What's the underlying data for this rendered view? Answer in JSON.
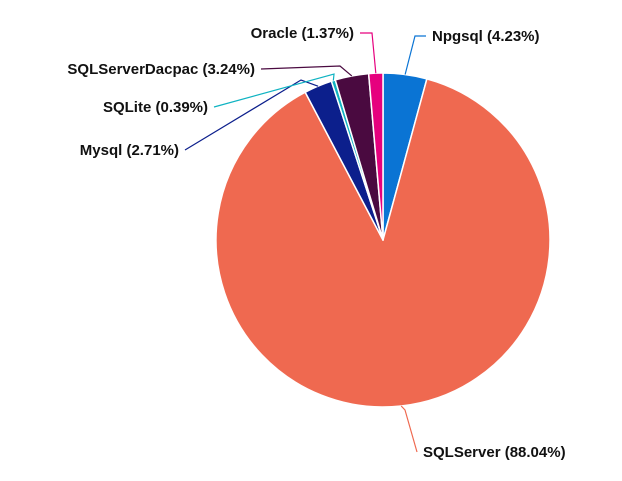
{
  "chart_data": {
    "type": "pie",
    "slices": [
      {
        "label": "Npgsql",
        "value": 4.23,
        "display": "Npgsql (4.23%)",
        "color": "#0a74d4"
      },
      {
        "label": "SQLServer",
        "value": 88.04,
        "display": "SQLServer (88.04%)",
        "color": "#ef6950"
      },
      {
        "label": "Mysql",
        "value": 2.71,
        "display": "Mysql (2.71%)",
        "color": "#0c1f8c"
      },
      {
        "label": "SQLite",
        "value": 0.39,
        "display": "SQLite (0.39%)",
        "color": "#0fb3c2"
      },
      {
        "label": "SQLServerDacpac",
        "value": 3.24,
        "display": "SQLServerDacpac (3.24%)",
        "color": "#4a0a40"
      },
      {
        "label": "Oracle",
        "value": 1.37,
        "display": "Oracle (1.37%)",
        "color": "#e6007e"
      }
    ],
    "start_angle": "top",
    "direction": "clockwise",
    "legend": "none"
  }
}
